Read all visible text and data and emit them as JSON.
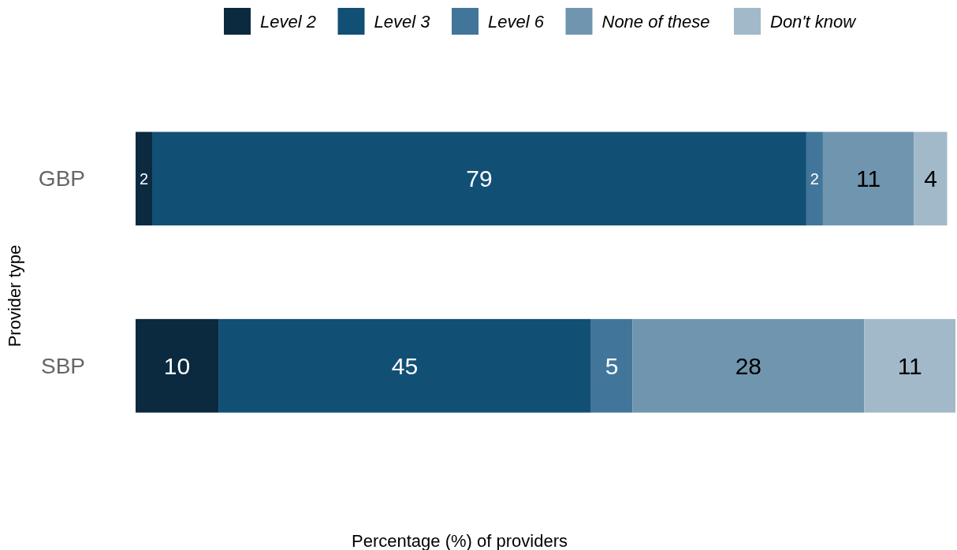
{
  "chart_data": {
    "type": "bar",
    "orientation": "horizontal",
    "stacked": true,
    "xlabel": "Percentage (%) of providers",
    "ylabel": "Provider type",
    "categories": [
      "GBP",
      "SBP"
    ],
    "series": [
      {
        "name": "Level 2",
        "color": "#0b2a40",
        "values": [
          2,
          10
        ]
      },
      {
        "name": "Level 3",
        "color": "#124f75",
        "values": [
          79,
          45
        ]
      },
      {
        "name": "Level 6",
        "color": "#41769a",
        "values": [
          2,
          5
        ]
      },
      {
        "name": "None of these",
        "color": "#7095ae",
        "values": [
          11,
          28
        ]
      },
      {
        "name": "Don't know",
        "color": "#a2b9c9",
        "values": [
          4,
          11
        ]
      }
    ],
    "data_labels": true,
    "legend": "top",
    "tick_labels": "y"
  }
}
